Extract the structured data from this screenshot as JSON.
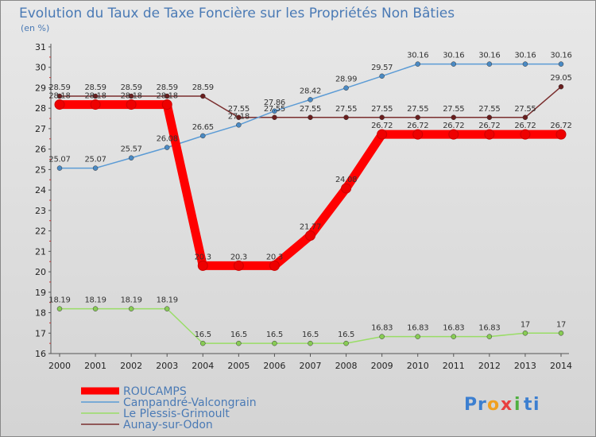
{
  "chart_data": {
    "type": "line",
    "title": "Evolution du Taux de Taxe Foncière sur les Propriétés Non Bâties",
    "subtitle": "(en %)",
    "categories": [
      "2000",
      "2001",
      "2002",
      "2003",
      "2004",
      "2005",
      "2006",
      "2007",
      "2008",
      "2009",
      "2010",
      "2011",
      "2012",
      "2013",
      "2014"
    ],
    "ylim": [
      16,
      31
    ],
    "yticks": [
      16,
      17,
      18,
      19,
      20,
      21,
      22,
      23,
      24,
      25,
      26,
      27,
      28,
      29,
      30,
      31
    ],
    "grid": false,
    "legend_position": "bottom-left",
    "series": [
      {
        "name": "ROUCAMPS",
        "color": "#ff0000",
        "marker": "#ee0000",
        "values": [
          28.18,
          28.18,
          28.18,
          28.18,
          20.3,
          20.3,
          20.3,
          21.77,
          24.08,
          26.72,
          26.72,
          26.72,
          26.72,
          26.72,
          26.72
        ],
        "labels": [
          "28.18",
          "28.18",
          "28.18",
          "28.18",
          "20.3",
          "20.3",
          "20.3",
          "21.77",
          "24.08",
          "26.72",
          "26.72",
          "26.72",
          "26.72",
          "26.72",
          "26.72"
        ]
      },
      {
        "name": "Campandré-Valcongrain",
        "color": "#5b9bd5",
        "marker": "#4a8ac4",
        "values": [
          25.07,
          25.07,
          25.57,
          26.08,
          26.65,
          27.18,
          27.86,
          28.42,
          28.99,
          29.57,
          30.16,
          30.16,
          30.16,
          30.16,
          30.16
        ],
        "labels": [
          "25.07",
          "25.07",
          "25.57",
          "26.08",
          "26.65",
          "27.18",
          "27.86",
          "28.42",
          "28.99",
          "29.57",
          "30.16",
          "30.16",
          "30.16",
          "30.16",
          "30.16"
        ]
      },
      {
        "name": "Le Plessis-Grimoult",
        "color": "#99dd66",
        "marker": "#88cc55",
        "values": [
          18.19,
          18.19,
          18.19,
          18.19,
          16.5,
          16.5,
          16.5,
          16.5,
          16.5,
          16.83,
          16.83,
          16.83,
          16.83,
          17,
          17
        ],
        "labels": [
          "18.19",
          "18.19",
          "18.19",
          "18.19",
          "16.5",
          "16.5",
          "16.5",
          "16.5",
          "16.5",
          "16.83",
          "16.83",
          "16.83",
          "16.83",
          "17",
          "17"
        ]
      },
      {
        "name": "Aunay-sur-Odon",
        "color": "#7a2e2e",
        "marker": "#6a1e1e",
        "values": [
          28.59,
          28.59,
          28.59,
          28.59,
          28.59,
          27.55,
          27.55,
          27.55,
          27.55,
          27.55,
          27.55,
          27.55,
          27.55,
          27.55,
          29.05
        ],
        "labels": [
          "28.59",
          "28.59",
          "28.59",
          "28.59",
          "28.59",
          "27.55",
          "27.55",
          "27.55",
          "27.55",
          "27.55",
          "27.55",
          "27.55",
          "27.55",
          "27.55",
          "29.05"
        ]
      }
    ]
  },
  "brand": {
    "text": "Proxiti",
    "letters": [
      "P",
      "r",
      "o",
      "x",
      "i",
      "t",
      "i"
    ],
    "colors": [
      "#3c7fd0",
      "#3c7fd0",
      "#f0a020",
      "#e84040",
      "#50b040",
      "#3c7fd0",
      "#3c7fd0"
    ]
  }
}
